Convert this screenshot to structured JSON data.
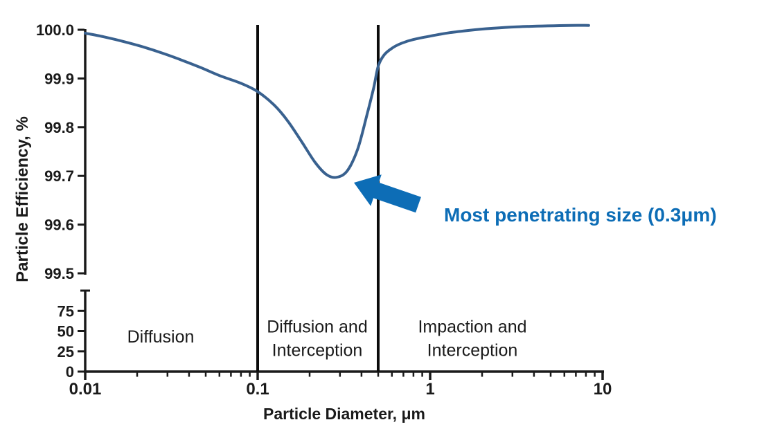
{
  "colors": {
    "axis": "#1a1a1a",
    "curve": "#39618f",
    "accent_blue": "#0d6db6",
    "background": "#ffffff"
  },
  "chart_data": {
    "type": "line",
    "title": "",
    "xlabel": "Particle Diameter, μm",
    "ylabel": "Particle Efficiency, %",
    "x_scale": "log",
    "x_range": [
      0.01,
      10
    ],
    "x_tick_labels": [
      "0.01",
      "0.1",
      "1",
      "10"
    ],
    "x_minor_tick_multipliers": [
      2,
      3,
      4,
      5,
      6,
      7,
      8,
      9
    ],
    "upper_axis": {
      "ylim": [
        99.5,
        100.0
      ],
      "tick_labels": [
        "100.0",
        "99.9",
        "99.8",
        "99.7",
        "99.6",
        "99.5"
      ]
    },
    "lower_axis": {
      "ylim": [
        0,
        100
      ],
      "tick_labels": [
        "75",
        "50",
        "25",
        "0"
      ]
    },
    "grid": false,
    "legend": "none",
    "vertical_divider_lines_um": [
      0.1,
      0.5
    ],
    "regions": [
      {
        "label": "Diffusion",
        "range_um": [
          0.01,
          0.1
        ]
      },
      {
        "label": "Diffusion and\nInterception",
        "range_um": [
          0.1,
          0.5
        ]
      },
      {
        "label": "Impaction and\nInterception",
        "range_um": [
          0.5,
          10
        ]
      }
    ],
    "annotation": {
      "text": "Most penetrating size (0.3μm)",
      "color": "#0d6db6",
      "points_to_um": 0.3,
      "min_efficiency_pct": 99.7
    },
    "series": [
      {
        "name": "particle-efficiency-curve",
        "color": "#39618f",
        "points": [
          [
            0.01,
            99.993
          ],
          [
            0.013,
            99.985
          ],
          [
            0.017,
            99.975
          ],
          [
            0.022,
            99.964
          ],
          [
            0.028,
            99.952
          ],
          [
            0.036,
            99.938
          ],
          [
            0.047,
            99.922
          ],
          [
            0.06,
            99.906
          ],
          [
            0.08,
            99.89
          ],
          [
            0.1,
            99.873
          ],
          [
            0.125,
            99.845
          ],
          [
            0.15,
            99.812
          ],
          [
            0.18,
            99.77
          ],
          [
            0.215,
            99.728
          ],
          [
            0.25,
            99.703
          ],
          [
            0.285,
            99.697
          ],
          [
            0.33,
            99.71
          ],
          [
            0.38,
            99.755
          ],
          [
            0.43,
            99.825
          ],
          [
            0.47,
            99.88
          ],
          [
            0.5,
            99.925
          ],
          [
            0.54,
            99.948
          ],
          [
            0.6,
            99.962
          ],
          [
            0.68,
            99.972
          ],
          [
            0.8,
            99.98
          ],
          [
            1.0,
            99.987
          ],
          [
            1.3,
            99.994
          ],
          [
            1.7,
            99.999
          ],
          [
            2.3,
            100.003
          ],
          [
            3.2,
            100.006
          ],
          [
            4.8,
            100.008
          ],
          [
            6.5,
            100.009
          ],
          [
            8.3,
            100.009
          ]
        ]
      }
    ]
  }
}
